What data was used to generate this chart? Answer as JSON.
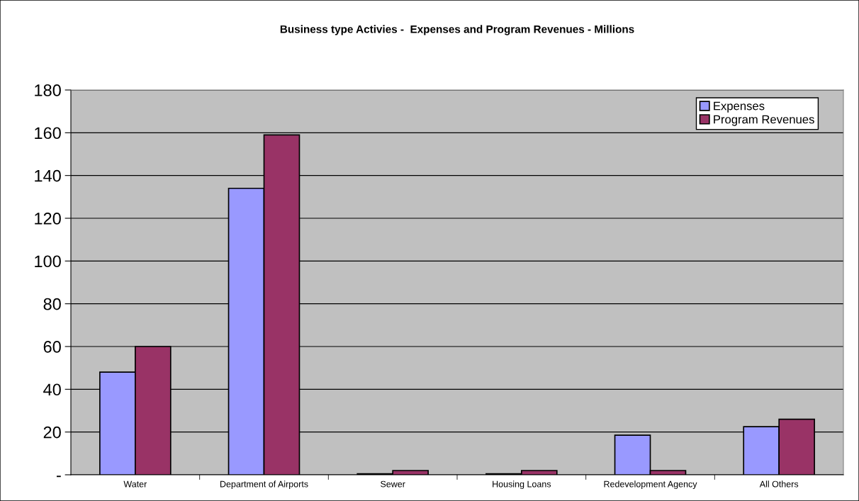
{
  "chart_data": {
    "type": "bar",
    "title": "Business type Activies -  Expenses and Program Revenues - Millions",
    "categories": [
      "Water",
      "Department of Airports",
      "Sewer",
      "Housing Loans",
      "Redevelopment Agency",
      "All Others"
    ],
    "series": [
      {
        "name": "Expenses",
        "color": "#9999ff",
        "values": [
          48,
          134,
          0.5,
          0.5,
          18.5,
          22.5
        ]
      },
      {
        "name": "Program Revenues",
        "color": "#993366",
        "values": [
          60,
          159,
          2,
          2,
          2,
          26
        ]
      }
    ],
    "ylim": [
      0,
      180
    ],
    "yticks": [
      {
        "value": 0,
        "label": "-"
      },
      20,
      40,
      60,
      80,
      100,
      120,
      140,
      160,
      180
    ],
    "grid": "y",
    "legend": "top right"
  }
}
